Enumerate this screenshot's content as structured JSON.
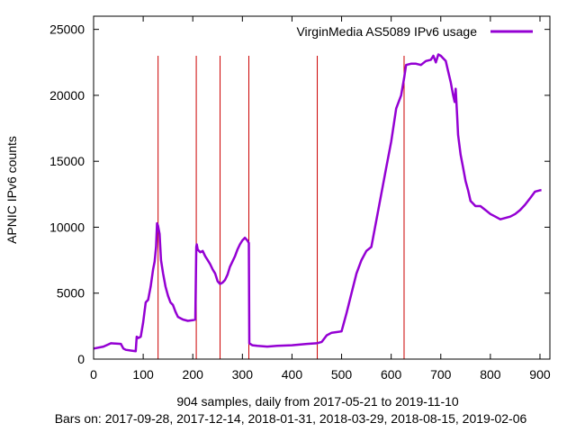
{
  "chart_data": {
    "type": "line",
    "title": "",
    "xlabel": "904 samples, daily from 2017-05-21 to 2019-11-10",
    "ylabel": "APNIC IPv6 counts",
    "subtitle": "Bars on:  2017-09-28, 2017-12-14, 2018-01-31, 2018-03-29, 2018-08-15, 2019-02-06",
    "xlim": [
      0,
      920
    ],
    "ylim": [
      0,
      26000
    ],
    "x_ticks": [
      0,
      100,
      200,
      300,
      400,
      500,
      600,
      700,
      800,
      900
    ],
    "y_ticks": [
      0,
      5000,
      10000,
      15000,
      20000,
      25000
    ],
    "grid": false,
    "legend": "top-right",
    "bars_x": [
      130,
      207,
      255,
      313,
      451,
      626
    ],
    "bar_color": "#cc0000",
    "series": [
      {
        "name": "VirginMedia AS5089 IPv6 usage",
        "color": "#9400d3",
        "x": [
          0,
          20,
          35,
          55,
          60,
          65,
          75,
          85,
          87,
          90,
          95,
          100,
          105,
          110,
          115,
          120,
          123,
          126,
          128,
          130,
          133,
          136,
          140,
          145,
          150,
          155,
          160,
          165,
          170,
          180,
          190,
          200,
          205,
          207,
          208,
          210,
          215,
          220,
          225,
          230,
          235,
          240,
          245,
          250,
          255,
          260,
          265,
          270,
          275,
          280,
          285,
          290,
          295,
          300,
          305,
          310,
          313,
          314,
          320,
          330,
          350,
          370,
          400,
          430,
          450,
          460,
          470,
          480,
          490,
          500,
          510,
          520,
          530,
          540,
          550,
          560,
          570,
          580,
          590,
          600,
          610,
          620,
          626,
          630,
          640,
          650,
          660,
          670,
          680,
          685,
          690,
          695,
          700,
          705,
          710,
          715,
          720,
          725,
          728,
          730,
          733,
          735,
          740,
          745,
          750,
          755,
          760,
          765,
          770,
          780,
          790,
          800,
          810,
          820,
          830,
          840,
          850,
          860,
          870,
          880,
          890,
          900,
          903
        ],
        "y": [
          800,
          950,
          1200,
          1150,
          800,
          700,
          650,
          600,
          1700,
          1600,
          1700,
          2800,
          4300,
          4500,
          5500,
          6800,
          7400,
          8500,
          10300,
          10100,
          9500,
          7500,
          6500,
          5500,
          4800,
          4300,
          4100,
          3600,
          3200,
          3000,
          2900,
          2950,
          3000,
          8500,
          8700,
          8300,
          8100,
          8200,
          7800,
          7500,
          7200,
          6800,
          6500,
          5900,
          5700,
          5800,
          6000,
          6400,
          7000,
          7400,
          7800,
          8300,
          8700,
          9000,
          9200,
          9000,
          8800,
          1200,
          1050,
          1000,
          950,
          1000,
          1050,
          1150,
          1200,
          1300,
          1800,
          2000,
          2050,
          2100,
          3500,
          5000,
          6500,
          7500,
          8200,
          8500,
          10500,
          12500,
          14500,
          16500,
          19000,
          20000,
          21300,
          22300,
          22400,
          22400,
          22300,
          22600,
          22700,
          23000,
          22500,
          23100,
          23000,
          22800,
          22600,
          21800,
          21000,
          20000,
          19500,
          20500,
          18500,
          17000,
          15500,
          14500,
          13500,
          12800,
          12000,
          11800,
          11600,
          11600,
          11300,
          11000,
          10800,
          10600,
          10700,
          10800,
          11000,
          11300,
          11700,
          12200,
          12700,
          12800,
          12800
        ]
      }
    ]
  }
}
